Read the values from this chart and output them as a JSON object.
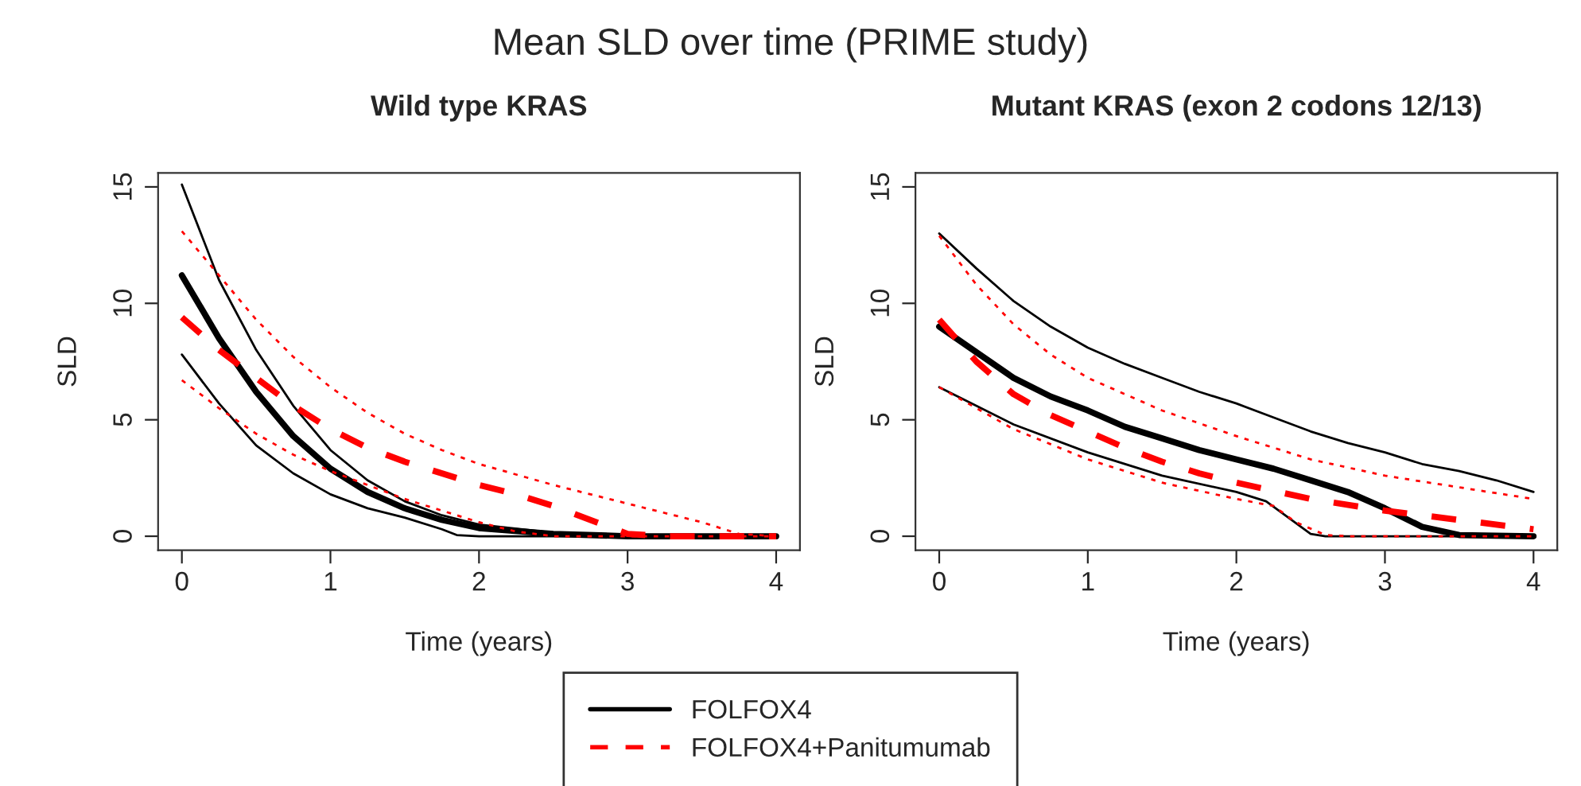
{
  "chart_data": [
    {
      "type": "line",
      "title": "Wild type KRAS",
      "xlabel": "Time (years)",
      "ylabel": "SLD",
      "annotations": [
        "Mean SLD over time (PRIME study)"
      ],
      "legend": "bottom",
      "grid": false,
      "xlim": [
        -0.16,
        4.16
      ],
      "ylim": [
        -0.6,
        15.6
      ],
      "xticks": [
        0,
        1,
        2,
        3,
        4
      ],
      "yticks": [
        0,
        5,
        10,
        15
      ],
      "series": [
        {
          "name": "FOLFOX4",
          "color": "#000000",
          "line_style": "solid",
          "x": [
            0,
            0.25,
            0.5,
            0.75,
            1,
            1.25,
            1.5,
            1.75,
            2,
            2.5,
            3,
            4
          ],
          "values": [
            11.2,
            8.5,
            6.2,
            4.3,
            2.9,
            1.9,
            1.2,
            0.7,
            0.35,
            0.1,
            0,
            0
          ]
        },
        {
          "color": "#000000",
          "line_style": "solid",
          "x": [
            0,
            0.25,
            0.5,
            0.75,
            1,
            1.25,
            1.5,
            1.75,
            2,
            2.5,
            3,
            4
          ],
          "values": [
            15.1,
            11,
            8,
            5.6,
            3.7,
            2.4,
            1.5,
            0.9,
            0.5,
            0.15,
            0.05,
            0
          ]
        },
        {
          "color": "#000000",
          "line_style": "solid",
          "x": [
            0,
            0.25,
            0.5,
            0.75,
            1,
            1.25,
            1.5,
            1.75,
            1.85,
            2,
            4
          ],
          "values": [
            7.8,
            5.7,
            3.9,
            2.7,
            1.8,
            1.2,
            0.8,
            0.3,
            0.05,
            0,
            0
          ]
        },
        {
          "name": "FOLFOX4+Panitumumab",
          "color": "#ff0000",
          "line_style": "dashed",
          "x": [
            0,
            0.25,
            0.5,
            0.75,
            1,
            1.25,
            1.5,
            1.75,
            2,
            2.25,
            2.5,
            2.75,
            3,
            3.25,
            4
          ],
          "values": [
            9.4,
            8,
            6.8,
            5.6,
            4.6,
            3.8,
            3.2,
            2.7,
            2.2,
            1.8,
            1.3,
            0.7,
            0.1,
            0,
            0
          ]
        },
        {
          "color": "#ff0000",
          "line_style": "dotted",
          "x": [
            0,
            0.25,
            0.5,
            0.75,
            1,
            1.25,
            1.5,
            1.75,
            2,
            2.5,
            3,
            3.5,
            3.75,
            4
          ],
          "values": [
            13.1,
            11.2,
            9.3,
            7.7,
            6.4,
            5.3,
            4.4,
            3.7,
            3.1,
            2.2,
            1.4,
            0.6,
            0.1,
            0
          ]
        },
        {
          "color": "#ff0000",
          "line_style": "dotted",
          "x": [
            0,
            0.25,
            0.5,
            0.75,
            1,
            1.25,
            1.5,
            1.75,
            2,
            2.25,
            2.5,
            4
          ],
          "values": [
            6.7,
            5.5,
            4.4,
            3.5,
            2.8,
            2.2,
            1.6,
            1.1,
            0.6,
            0.2,
            0,
            0
          ]
        }
      ]
    },
    {
      "type": "line",
      "title": "Mutant KRAS (exon 2 codons 12/13)",
      "xlabel": "Time (years)",
      "ylabel": "SLD",
      "grid": false,
      "xlim": [
        -0.16,
        4.16
      ],
      "ylim": [
        -0.6,
        15.6
      ],
      "xticks": [
        0,
        1,
        2,
        3,
        4
      ],
      "yticks": [
        0,
        5,
        10,
        15
      ],
      "series": [
        {
          "color": "#000000",
          "line_style": "solid",
          "x": [
            0,
            0.25,
            0.5,
            0.75,
            1,
            1.25,
            1.5,
            1.75,
            2,
            2.25,
            2.5,
            2.75,
            3,
            3.25,
            3.5,
            4
          ],
          "values": [
            9,
            7.9,
            6.8,
            6,
            5.4,
            4.7,
            4.2,
            3.7,
            3.3,
            2.9,
            2.4,
            1.9,
            1.2,
            0.4,
            0.05,
            0
          ]
        },
        {
          "color": "#000000",
          "line_style": "solid",
          "x": [
            0,
            0.25,
            0.5,
            0.75,
            1,
            1.25,
            1.5,
            1.75,
            2,
            2.25,
            2.5,
            2.75,
            3,
            3.25,
            3.5,
            3.75,
            4
          ],
          "values": [
            13,
            11.5,
            10.1,
            9,
            8.1,
            7.4,
            6.8,
            6.2,
            5.7,
            5.1,
            4.5,
            4,
            3.6,
            3.1,
            2.8,
            2.4,
            1.9
          ]
        },
        {
          "color": "#000000",
          "line_style": "solid",
          "x": [
            0,
            0.5,
            1,
            1.5,
            2,
            2.2,
            2.35,
            2.5,
            2.6,
            4
          ],
          "values": [
            6.4,
            4.8,
            3.6,
            2.6,
            1.9,
            1.5,
            0.8,
            0.1,
            0,
            0
          ]
        },
        {
          "color": "#ff0000",
          "line_style": "dashed",
          "x": [
            0,
            0.25,
            0.5,
            0.75,
            1,
            1.25,
            1.5,
            1.75,
            2,
            2.5,
            3,
            3.5,
            4
          ],
          "values": [
            9.3,
            7.5,
            6.1,
            5.2,
            4.5,
            3.8,
            3.2,
            2.7,
            2.3,
            1.6,
            1.1,
            0.7,
            0.3
          ]
        },
        {
          "color": "#ff0000",
          "line_style": "dotted",
          "x": [
            0,
            0.25,
            0.5,
            0.75,
            1,
            1.5,
            2,
            2.5,
            3,
            3.5,
            4
          ],
          "values": [
            12.9,
            10.8,
            9.1,
            7.8,
            6.8,
            5.4,
            4.3,
            3.3,
            2.6,
            2.1,
            1.6
          ]
        },
        {
          "color": "#ff0000",
          "line_style": "dotted",
          "x": [
            0,
            0.5,
            1,
            1.5,
            2,
            2.25,
            2.4,
            2.6,
            2.75,
            4
          ],
          "values": [
            6.4,
            4.6,
            3.3,
            2.3,
            1.6,
            1.3,
            0.6,
            0.05,
            0,
            0
          ]
        }
      ]
    }
  ]
}
